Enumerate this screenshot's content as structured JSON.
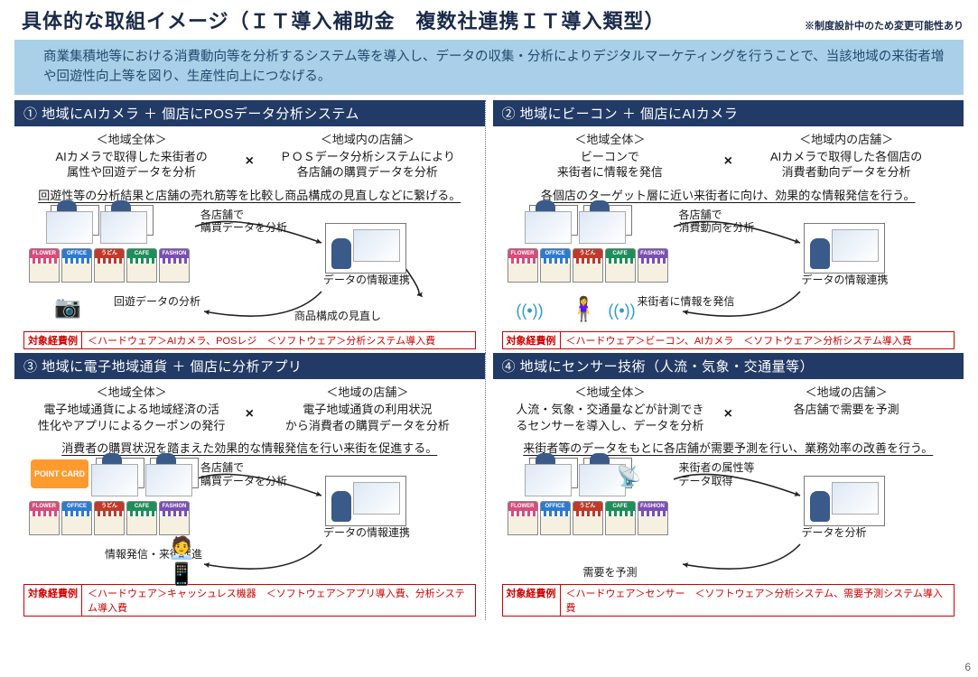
{
  "title": "具体的な取組イメージ（ＩＴ導入補助金　複数社連携ＩＴ導入類型）",
  "title_note": "※制度設計中のため変更可能性あり",
  "intro_bullet": "",
  "intro": "商業集積地等における消費動向等を分析するシステム等を導入し、データの収集・分析によりデジタルマーケティングを行うことで、当該地域の来街者増や回遊性向上等を図り、生産性向上につなげる。",
  "page_number": "6",
  "cost_tag_label": "対象経費例",
  "multiply_symbol": "×",
  "col_head_region": "＜地域全体＞",
  "col_head_shops_in": "＜地域内の店舗＞",
  "col_head_shops": "＜地域の店舗＞",
  "shop_signs": [
    "FLOWER",
    "OFFICE",
    "うどん",
    "CAFE",
    "FASHION"
  ],
  "shop_colors": [
    "#d84c7a",
    "#2e7ad1",
    "#c0392b",
    "#1e8e5a",
    "#7a4fb5"
  ],
  "quads": [
    {
      "num": "①",
      "title": "地域にAIカメラ ＋ 個店にPOSデータ分析システム",
      "left_head_key": "col_head_region",
      "right_head_key": "col_head_shops_in",
      "left": "AIカメラで取得した来街者の\n属性や回遊データを分析",
      "right": "ＰＯＳデータ分析システムにより\n各店舗の購買データを分析",
      "summary": "回遊性等の分析結果と店舗の売れ筋等を比較し商品構成の見直しなどに繋げる。",
      "labels": {
        "a": "各店舗で\n購買データを分析",
        "b": "回遊データの分析",
        "c": "データの情報連携",
        "d": "商品構成の見直し"
      },
      "cost": "＜ハードウェア＞AIカメラ、POSレジ　＜ソフトウェア＞分析システム導入費"
    },
    {
      "num": "②",
      "title": "地域にビーコン ＋ 個店にAIカメラ",
      "left_head_key": "col_head_region",
      "right_head_key": "col_head_shops_in",
      "left": "ビーコンで\n来街者に情報を発信",
      "right": "AIカメラで取得した各個店の\n消費者動向データを分析",
      "summary": "各個店のターゲット層に近い来街者に向け、効果的な情報発信を行う。",
      "labels": {
        "a": "各店舗で\n消費動向を分析",
        "b": "来街者に情報を発信",
        "c": "データの情報連携"
      },
      "cost": "＜ハードウェア＞ビーコン、AIカメラ　＜ソフトウェア＞分析システム導入費"
    },
    {
      "num": "③",
      "title": "地域に電子地域通貨 ＋ 個店に分析アプリ",
      "left_head_key": "col_head_region",
      "right_head_key": "col_head_shops",
      "left": "電子地域通貨による地域経済の活\n性化やアプリによるクーポンの発行",
      "right": "電子地域通貨の利用状況\nから消費者の購買データを分析",
      "summary": "消費者の購買状況を踏まえた効果的な情報発信を行い来街を促進する。",
      "labels": {
        "a": "各店舗で\n購買データを分析",
        "b": "情報発信・来街促進",
        "c": "データの情報連携"
      },
      "cost": "＜ハードウェア＞キャッシュレス機器　＜ソフトウェア＞アプリ導入費、分析システム導入費"
    },
    {
      "num": "④",
      "title": "地域にセンサー技術（人流・気象・交通量等）",
      "left_head_key": "col_head_region",
      "right_head_key": "col_head_shops",
      "left": "人流・気象・交通量などが計測でき\nるセンサーを導入し、データを分析",
      "right": "各店舗で需要を予測",
      "summary": "来街者等のデータをもとに各店舗が需要予測を行い、業務効率の改善を行う。",
      "labels": {
        "a": "来街者の属性等\nデータ取得",
        "b": "需要を予測",
        "c": "データを分析"
      },
      "cost": "＜ハードウェア＞センサー　＜ソフトウェア＞分析システム、需要予測システム導入費"
    }
  ]
}
